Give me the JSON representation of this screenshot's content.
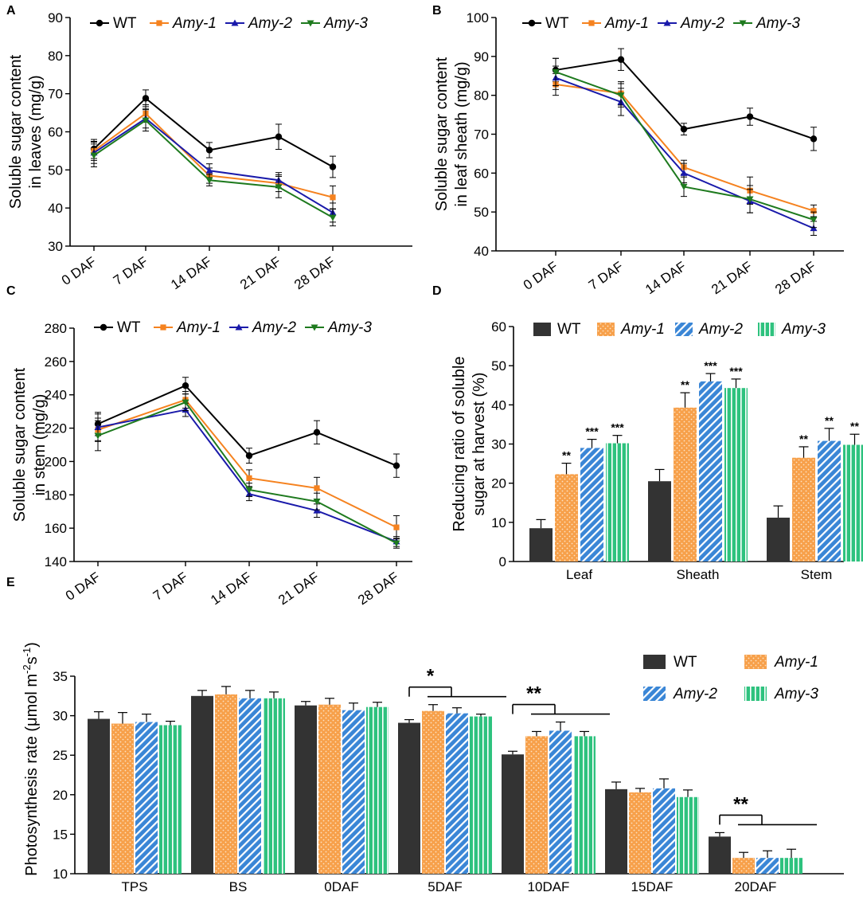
{
  "figure": {
    "panels": [
      "A",
      "B",
      "C",
      "D",
      "E"
    ],
    "legend": {
      "wt": "WT",
      "amy1": "Amy-1",
      "amy2": "Amy-2",
      "amy3": "Amy-3"
    },
    "colors": {
      "wt": "#000000",
      "amy1": "#f5821f",
      "amy2": "#1a1aaa",
      "amy3": "#1e7a1e",
      "bar_wt": "#333333",
      "bar_amy1": "#f7a04a",
      "bar_amy2": "#3a86d6",
      "bar_amy3": "#2ec27e"
    }
  },
  "chart_data": [
    {
      "id": "A",
      "type": "line",
      "ylabel_line1": "Soluble sugar content",
      "ylabel_line2": "in leaves (mg/g)",
      "categories": [
        "0 DAF",
        "7 DAF",
        "14 DAF",
        "21 DAF",
        "28 DAF"
      ],
      "ylim": [
        30,
        90
      ],
      "yticks": [
        30,
        40,
        50,
        60,
        70,
        80,
        90
      ],
      "series": [
        {
          "key": "wt",
          "name": "WT",
          "values": [
            55.5,
            68.8,
            55.2,
            58.7,
            50.8
          ],
          "errors": [
            2.5,
            2.2,
            2.0,
            3.3,
            2.8
          ]
        },
        {
          "key": "amy1",
          "name": "Amy-1",
          "values": [
            55.0,
            64.8,
            48.5,
            46.5,
            42.8
          ],
          "errors": [
            2.5,
            2.3,
            2.0,
            2.2,
            3.0
          ]
        },
        {
          "key": "amy2",
          "name": "Amy-2",
          "values": [
            54.5,
            63.5,
            49.8,
            47.3,
            38.8
          ],
          "errors": [
            2.8,
            2.5,
            1.8,
            2.0,
            2.5
          ]
        },
        {
          "key": "amy3",
          "name": "Amy-3",
          "values": [
            53.8,
            63.0,
            47.3,
            45.5,
            37.5
          ],
          "errors": [
            3.0,
            2.8,
            1.5,
            2.8,
            2.2
          ]
        }
      ]
    },
    {
      "id": "B",
      "type": "line",
      "ylabel_line1": "Soluble sugar content",
      "ylabel_line2": "in leaf sheath (mg/g)",
      "categories": [
        "0 DAF",
        "7 DAF",
        "14 DAF",
        "21 DAF",
        "28 DAF"
      ],
      "ylim": [
        40,
        100
      ],
      "yticks": [
        40,
        50,
        60,
        70,
        80,
        90,
        100
      ],
      "series": [
        {
          "key": "wt",
          "name": "WT",
          "values": [
            86.5,
            89.2,
            71.3,
            74.5,
            68.8
          ],
          "errors": [
            3.0,
            2.8,
            1.5,
            2.2,
            3.0
          ]
        },
        {
          "key": "amy1",
          "name": "Amy-1",
          "values": [
            82.8,
            80.5,
            61.5,
            55.5,
            50.3
          ],
          "errors": [
            2.8,
            3.0,
            1.8,
            3.5,
            1.5
          ]
        },
        {
          "key": "amy2",
          "name": "Amy-2",
          "values": [
            84.5,
            78.3,
            60.0,
            52.8,
            45.8
          ],
          "errors": [
            3.0,
            3.5,
            2.5,
            3.0,
            1.8
          ]
        },
        {
          "key": "amy3",
          "name": "Amy-3",
          "values": [
            86.0,
            80.0,
            56.5,
            53.3,
            48.0
          ],
          "errors": [
            3.5,
            3.0,
            2.5,
            3.5,
            2.0
          ]
        }
      ]
    },
    {
      "id": "C",
      "type": "line",
      "ylabel_line1": "Soluble sugar content",
      "ylabel_line2": "in stem (mg/g)",
      "categories": [
        "0 DAF",
        "7 DAF",
        "14 DAF",
        "21 DAF",
        "28 DAF"
      ],
      "ylim": [
        140,
        280
      ],
      "yticks": [
        140,
        160,
        180,
        200,
        220,
        240,
        260,
        280
      ],
      "series": [
        {
          "key": "wt",
          "name": "WT",
          "values": [
            222.5,
            245.5,
            203.5,
            217.5,
            197.5
          ],
          "errors": [
            7.0,
            5.0,
            4.5,
            7.0,
            7.0
          ]
        },
        {
          "key": "amy1",
          "name": "Amy-1",
          "values": [
            219.0,
            237.0,
            190.0,
            184.0,
            160.5
          ],
          "errors": [
            7.0,
            5.0,
            5.0,
            6.5,
            7.0
          ]
        },
        {
          "key": "amy2",
          "name": "Amy-2",
          "values": [
            220.5,
            231.0,
            180.5,
            170.5,
            152.0
          ],
          "errors": [
            8.0,
            4.0,
            4.0,
            4.0,
            3.0
          ]
        },
        {
          "key": "amy3",
          "name": "Amy-3",
          "values": [
            215.5,
            235.5,
            183.0,
            176.0,
            151.0
          ],
          "errors": [
            9.0,
            5.0,
            4.0,
            5.0,
            3.0
          ]
        }
      ]
    },
    {
      "id": "D",
      "type": "bar",
      "ylabel_line1": "Reducing ratio of soluble",
      "ylabel_line2": "sugar at harvest (%)",
      "categories": [
        "Leaf",
        "Sheath",
        "Stem"
      ],
      "ylim": [
        0,
        60
      ],
      "yticks": [
        0,
        10,
        20,
        30,
        40,
        50,
        60
      ],
      "series": [
        {
          "key": "wt",
          "name": "WT",
          "values": [
            8.5,
            20.5,
            11.2
          ],
          "errors": [
            2.2,
            3.0,
            3.0
          ],
          "sig": [
            "",
            "",
            ""
          ]
        },
        {
          "key": "amy1",
          "name": "Amy-1",
          "values": [
            22.3,
            39.3,
            26.5
          ],
          "errors": [
            2.8,
            3.8,
            2.8
          ],
          "sig": [
            "**",
            "**",
            "**"
          ]
        },
        {
          "key": "amy2",
          "name": "Amy-2",
          "values": [
            29.0,
            46.0,
            30.8
          ],
          "errors": [
            2.2,
            2.0,
            3.2
          ],
          "sig": [
            "***",
            "***",
            "**"
          ]
        },
        {
          "key": "amy3",
          "name": "Amy-3",
          "values": [
            30.2,
            44.3,
            29.8
          ],
          "errors": [
            2.0,
            2.3,
            2.7
          ],
          "sig": [
            "***",
            "***",
            "**"
          ]
        }
      ]
    },
    {
      "id": "E",
      "type": "bar",
      "ylabel": "Photosynthesis rate (μmol m",
      "ylabel_sup1": "-2",
      "ylabel_mid": "s",
      "ylabel_sup2": "-1",
      "ylabel_end": ")",
      "categories": [
        "TPS",
        "BS",
        "0DAF",
        "5DAF",
        "10DAF",
        "15DAF",
        "20DAF"
      ],
      "ylim": [
        10,
        35
      ],
      "yticks": [
        10,
        15,
        20,
        25,
        30,
        35
      ],
      "significance": [
        {
          "category": "5DAF",
          "label": "*"
        },
        {
          "category": "10DAF",
          "label": "**"
        },
        {
          "category": "20DAF",
          "label": "**"
        }
      ],
      "series": [
        {
          "key": "wt",
          "name": "WT",
          "values": [
            29.6,
            32.5,
            31.3,
            29.1,
            25.1,
            20.7,
            14.7
          ],
          "errors": [
            0.9,
            0.7,
            0.5,
            0.4,
            0.4,
            0.9,
            0.5
          ]
        },
        {
          "key": "amy1",
          "name": "Amy-1",
          "values": [
            29.0,
            32.7,
            31.4,
            30.6,
            27.4,
            20.3,
            12.0
          ],
          "errors": [
            1.4,
            1.0,
            0.8,
            0.8,
            0.6,
            0.5,
            0.7
          ]
        },
        {
          "key": "amy2",
          "name": "Amy-2",
          "values": [
            29.2,
            32.2,
            30.7,
            30.3,
            28.1,
            20.8,
            12.0
          ],
          "errors": [
            1.0,
            1.0,
            0.9,
            0.7,
            1.1,
            1.2,
            0.9
          ]
        },
        {
          "key": "amy3",
          "name": "Amy-3",
          "values": [
            28.8,
            32.2,
            31.1,
            29.9,
            27.4,
            19.7,
            12.0
          ],
          "errors": [
            0.5,
            0.8,
            0.6,
            0.3,
            0.6,
            0.9,
            1.1
          ]
        }
      ]
    }
  ]
}
